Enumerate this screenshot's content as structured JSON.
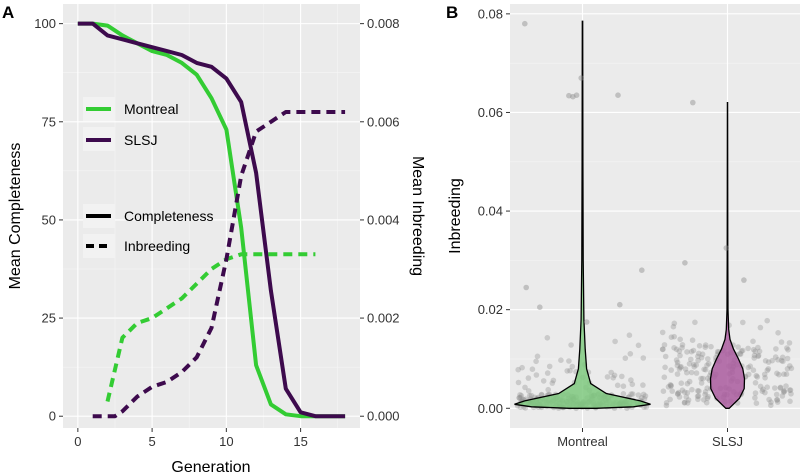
{
  "colors": {
    "montreal": "#33cc33",
    "slsj": "#3d0a4d",
    "montreal_fill": "#7fc97f",
    "slsj_fill": "#aa5c9f",
    "point": "#8c8c8c"
  },
  "chart_data": [
    {
      "panel": "A",
      "type": "line",
      "xlabel": "Generation",
      "ylabel": "Mean Completeness",
      "y2label": "Mean Inbreeding",
      "xlim": [
        -1,
        19
      ],
      "ylim": [
        -3,
        105
      ],
      "y2lim": [
        -0.00024,
        0.0084
      ],
      "xticks": [
        "0",
        "5",
        "10",
        "15"
      ],
      "yticks": [
        "0",
        "25",
        "50",
        "75",
        "100"
      ],
      "y2ticks": [
        "0.000",
        "0.002",
        "0.004",
        "0.006",
        "0.008"
      ],
      "legend": {
        "montreal": "Montreal",
        "slsj": "SLSJ",
        "completeness": "Completeness",
        "inbreeding": "Inbreeding"
      },
      "series": [
        {
          "name": "Montreal",
          "measure": "Completeness",
          "axis": "left",
          "style": "solid",
          "x": [
            0,
            1,
            2,
            3,
            4,
            5,
            6,
            7,
            8,
            9,
            10,
            11,
            12,
            13,
            14,
            15,
            16,
            17,
            18
          ],
          "y": [
            100,
            100,
            99.5,
            97,
            95,
            93,
            92,
            90,
            87,
            81,
            73,
            48,
            13,
            3,
            0.5,
            0,
            0,
            0,
            0
          ]
        },
        {
          "name": "SLSJ",
          "measure": "Completeness",
          "axis": "left",
          "style": "solid",
          "x": [
            0,
            1,
            2,
            3,
            4,
            5,
            6,
            7,
            8,
            9,
            10,
            11,
            12,
            13,
            14,
            15,
            16,
            17,
            18
          ],
          "y": [
            100,
            100,
            97,
            96,
            95,
            94,
            93,
            92,
            90,
            89,
            86,
            80,
            62,
            32,
            7,
            1,
            0,
            0,
            0
          ]
        },
        {
          "name": "Montreal",
          "measure": "Inbreeding",
          "axis": "right",
          "style": "dashed",
          "x": [
            2,
            3,
            4,
            5,
            6,
            7,
            8,
            9,
            10,
            11,
            12,
            13,
            14,
            15,
            16
          ],
          "y": [
            0.0003,
            0.0016,
            0.0019,
            0.002,
            0.0022,
            0.0024,
            0.0027,
            0.003,
            0.0032,
            0.0033,
            0.0033,
            0.0033,
            0.0033,
            0.0033,
            0.0033
          ]
        },
        {
          "name": "SLSJ",
          "measure": "Inbreeding",
          "axis": "right",
          "style": "dashed",
          "x": [
            1,
            2,
            2.5,
            3,
            4,
            5,
            6,
            7,
            8,
            9,
            10,
            11,
            12,
            13,
            14,
            15,
            16,
            17,
            18
          ],
          "y": [
            0,
            0,
            0,
            0.0001,
            0.0004,
            0.0006,
            0.0007,
            0.0009,
            0.0012,
            0.0018,
            0.0032,
            0.0049,
            0.0058,
            0.006,
            0.0062,
            0.0062,
            0.0062,
            0.0062,
            0.0062
          ]
        }
      ]
    },
    {
      "panel": "B",
      "type": "violin",
      "ylabel": "Inbreeding",
      "categories": [
        "Montreal",
        "SLSJ"
      ],
      "ylim": [
        -0.004,
        0.082
      ],
      "yticks": [
        "0.00",
        "0.02",
        "0.04",
        "0.06",
        "0.08"
      ],
      "violins": [
        {
          "name": "Montreal",
          "min": 0,
          "max": 0.0785,
          "profile": [
            [
              0,
              0.2
            ],
            [
              0.0003,
              0.75
            ],
            [
              0.0008,
              1.0
            ],
            [
              0.0015,
              0.85
            ],
            [
              0.003,
              0.35
            ],
            [
              0.005,
              0.12
            ],
            [
              0.008,
              0.06
            ],
            [
              0.012,
              0.04
            ],
            [
              0.018,
              0.02
            ],
            [
              0.03,
              0.01
            ],
            [
              0.05,
              0.006
            ],
            [
              0.0785,
              0.003
            ]
          ]
        },
        {
          "name": "SLSJ",
          "min": 0,
          "max": 0.062,
          "profile": [
            [
              0,
              0.1
            ],
            [
              0.002,
              0.7
            ],
            [
              0.004,
              0.98
            ],
            [
              0.006,
              1.0
            ],
            [
              0.008,
              0.9
            ],
            [
              0.01,
              0.65
            ],
            [
              0.012,
              0.35
            ],
            [
              0.014,
              0.15
            ],
            [
              0.016,
              0.07
            ],
            [
              0.02,
              0.03
            ],
            [
              0.03,
              0.02
            ],
            [
              0.045,
              0.01
            ],
            [
              0.062,
              0.006
            ]
          ]
        }
      ],
      "outliers": [
        {
          "group": "Montreal",
          "values": [
            0.067,
            0.0635,
            0.0632,
            0.0635,
            0.0634,
            0.078,
            0.028,
            0.0245,
            0.021,
            0.0175,
            0.0205
          ]
        },
        {
          "group": "SLSJ",
          "values": [
            0.062,
            0.0325,
            0.0295,
            0.026
          ]
        }
      ]
    }
  ]
}
